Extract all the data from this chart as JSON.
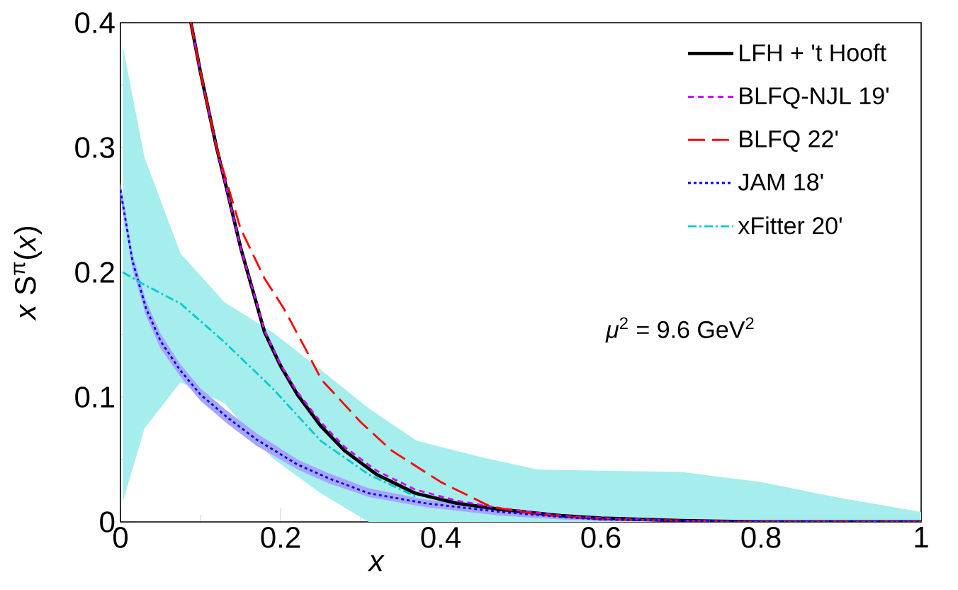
{
  "chart_data": {
    "type": "line",
    "xlabel": "*x*",
    "ylabel": "*x* S$^{π}$(*x*)",
    "xlim": [
      0,
      1
    ],
    "ylim": [
      0,
      0.4
    ],
    "xticks": [
      0,
      0.2,
      0.4,
      0.6,
      0.8,
      1
    ],
    "yticks": [
      0,
      0.1,
      0.2,
      0.3,
      0.4
    ],
    "grid": false,
    "legend": "top right",
    "annotations": [
      "*μ*$^{2}$ = 9.6 GeV$^{2}$"
    ],
    "series": [
      {
        "name": "LFH + 't Hooft",
        "color": "#000000",
        "line_style": "solid",
        "x": [
          0.088,
          0.1,
          0.12,
          0.133,
          0.15,
          0.18,
          0.2,
          0.221,
          0.25,
          0.28,
          0.32,
          0.368,
          0.42,
          0.475,
          0.55,
          0.6,
          0.7,
          0.8,
          0.9,
          1.0
        ],
        "values": [
          0.4,
          0.36,
          0.3,
          0.266,
          0.22,
          0.152,
          0.125,
          0.102,
          0.077,
          0.057,
          0.038,
          0.023,
          0.015,
          0.01,
          0.005,
          0.003,
          0.001,
          0,
          0,
          0
        ]
      },
      {
        "name": "BLFQ-NJL 19'",
        "color": "#cc00ff",
        "line_style": "dashed",
        "x": [
          0.088,
          0.1,
          0.12,
          0.133,
          0.15,
          0.18,
          0.2,
          0.221,
          0.25,
          0.28,
          0.32,
          0.368,
          0.42,
          0.475,
          0.55,
          0.6,
          0.7,
          0.8,
          0.9,
          1.0
        ],
        "values": [
          0.4,
          0.36,
          0.3,
          0.266,
          0.22,
          0.153,
          0.126,
          0.104,
          0.08,
          0.06,
          0.041,
          0.026,
          0.017,
          0.011,
          0.005,
          0.003,
          0.001,
          0,
          0,
          0
        ]
      },
      {
        "name": "BLFQ 22'",
        "color": "#ff0000",
        "line_style": "loosely dashed",
        "x": [
          0.088,
          0.1,
          0.12,
          0.15,
          0.18,
          0.204,
          0.23,
          0.251,
          0.3,
          0.339,
          0.4,
          0.463,
          0.52,
          0.6,
          0.7,
          0.8,
          0.9,
          1.0
        ],
        "values": [
          0.4,
          0.36,
          0.3,
          0.235,
          0.195,
          0.171,
          0.14,
          0.114,
          0.08,
          0.057,
          0.032,
          0.012,
          0.006,
          0.002,
          0.001,
          0,
          0,
          0
        ]
      },
      {
        "name": "JAM 18'",
        "color": "#0000ff",
        "line_style": "dotted",
        "x": [
          0.0,
          0.015,
          0.032,
          0.05,
          0.074,
          0.1,
          0.133,
          0.17,
          0.221,
          0.26,
          0.31,
          0.38,
          0.475,
          0.55,
          0.6,
          0.7,
          0.8,
          0.9,
          1.0
        ],
        "values": [
          0.266,
          0.209,
          0.171,
          0.145,
          0.122,
          0.102,
          0.084,
          0.066,
          0.046,
          0.035,
          0.023,
          0.015,
          0.008,
          0.004,
          0.002,
          0.001,
          0,
          0,
          0
        ],
        "lower": [
          0.26,
          0.203,
          0.165,
          0.139,
          0.117,
          0.097,
          0.079,
          0.061,
          0.042,
          0.031,
          0.02,
          0.012,
          0.005,
          0.002,
          0.001,
          0,
          0,
          0,
          0
        ],
        "upper": [
          0.272,
          0.215,
          0.177,
          0.151,
          0.127,
          0.107,
          0.089,
          0.071,
          0.05,
          0.039,
          0.027,
          0.018,
          0.011,
          0.006,
          0.004,
          0.002,
          0.001,
          0,
          0
        ]
      },
      {
        "name": "xFitter 20'",
        "color": "#00cccc",
        "line_style": "dashdotted",
        "x": [
          0.003,
          0.03,
          0.075,
          0.13,
          0.19,
          0.25,
          0.31,
          0.37,
          0.45,
          0.52,
          0.6,
          0.7,
          0.8,
          0.9,
          1.0
        ],
        "values": [
          0.2,
          0.19,
          0.175,
          0.144,
          0.107,
          0.065,
          0.038,
          0.02,
          null,
          null,
          null,
          null,
          null,
          null,
          null
        ],
        "lower": [
          0.016,
          0.075,
          0.112,
          0.095,
          0.051,
          0.023,
          0,
          0,
          0,
          0,
          0,
          0,
          0,
          0,
          0
        ],
        "upper": [
          0.381,
          0.292,
          0.215,
          0.176,
          0.152,
          0.122,
          0.091,
          0.065,
          0.052,
          0.042,
          0.041,
          0.04,
          0.032,
          0.019,
          0.008
        ]
      }
    ]
  }
}
